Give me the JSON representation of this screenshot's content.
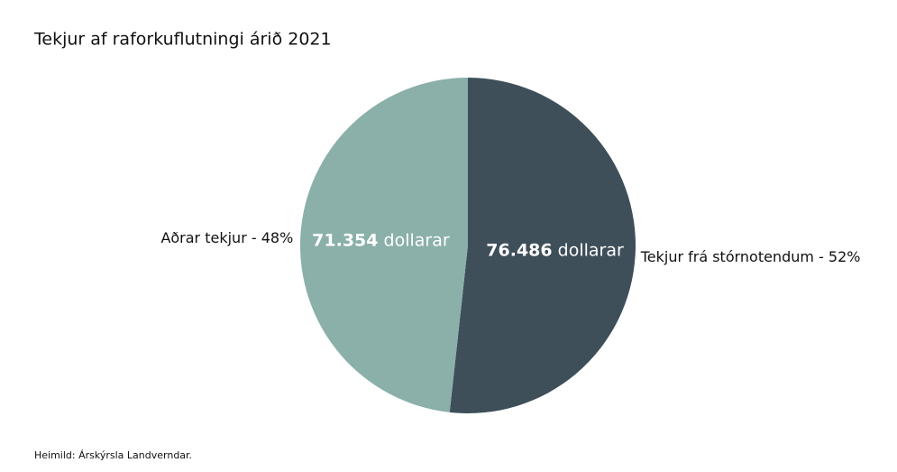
{
  "chart_data": {
    "type": "pie",
    "title": "Tekjur af raforkuflutningi árið 2021",
    "categories": [
      "Tekjur frá stórnotendum - 52%",
      "Aðrar tekjur - 48%"
    ],
    "values": [
      76486,
      71354
    ],
    "value_labels": [
      "76.486",
      "71.354"
    ],
    "value_unit": "dollarar",
    "colors": [
      "#3e4f5a",
      "#8ab0a9"
    ],
    "source": "Heimild: Árskýrsla Landverndar."
  }
}
